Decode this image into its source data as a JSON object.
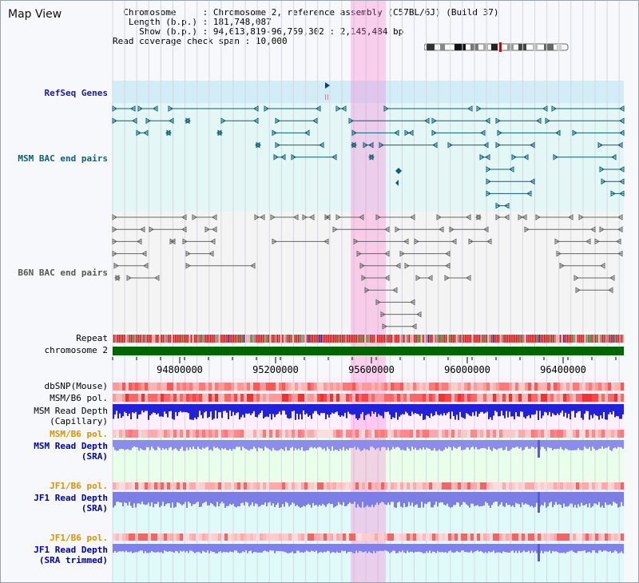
{
  "app": {
    "title": "Map View"
  },
  "info": {
    "chromosome_label": "Chromosome",
    "chromosome_value": "Chromosome 2, reference assembly (C57BL/6J) (Build 37)",
    "length_label": "Length (b.p.)",
    "length_value": "181,748,087",
    "show_label": "Show (b.p.)",
    "show_value": "94,613,819-96,759,302 : 2,145,484 bp",
    "coverage_label": "Read coverage check span",
    "coverage_value": "10,000"
  },
  "tracks": {
    "refseq": "RefSeq Genes",
    "msm_bac": "MSM BAC end pairs",
    "b6n_bac": "B6N BAC end pairs",
    "repeat": "Repeat",
    "chromosome": "chromosome 2",
    "dbsnp": "dbSNP(Mouse)",
    "msm_b6_pol": "MSM/B6 pol.",
    "msm_depth_cap_1": "MSM Read Depth",
    "msm_depth_cap_2": "(Capillary)",
    "msm_b6_pol_2": "MSM/B6 pol.",
    "msm_depth_sra_1": "MSM Read Depth",
    "msm_depth_sra_2": "(SRA)",
    "jf1_b6_pol": "JF1/B6 pol.",
    "jf1_depth_sra_1": "JF1 Read Depth",
    "jf1_depth_sra_2": "(SRA)",
    "jf1_b6_pol_2": "JF1/B6 pol.",
    "jf1_depth_trim_1": "JF1 Read Depth",
    "jf1_depth_trim_2": "(SRA trimmed)"
  },
  "axis": {
    "ticks": [
      "94800000",
      "95200000",
      "95600000",
      "96000000",
      "96400000"
    ]
  },
  "colors": {
    "refseq_blue": "#0d5f73",
    "msm_pol_orange": "#e09000",
    "depth_blue": "#0000aa",
    "chromosome_green": "#006400"
  }
}
